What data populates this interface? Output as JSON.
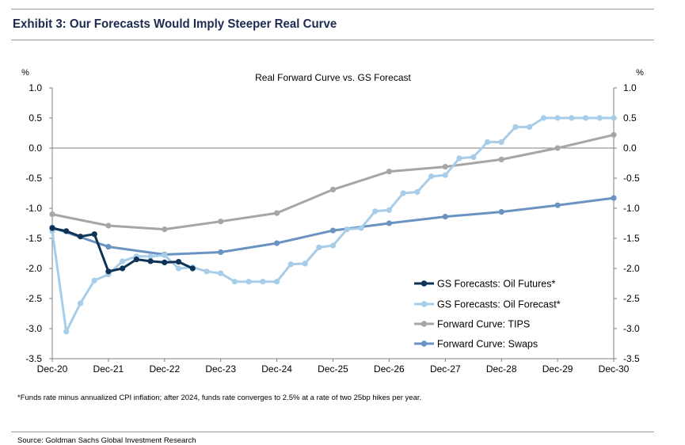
{
  "exhibit_title": "Exhibit 3: Our Forecasts Would Imply Steeper Real Curve",
  "footnote": "*Funds rate minus annualized CPI inflation; after 2024, funds rate converges to 2.5% at a rate of two 25bp hikes per year.",
  "source": "Source: Goldman Sachs Global Investment Research",
  "colors": {
    "title": "#1d2b4f",
    "rule": "#9a9a9a",
    "axis": "#7f7f7f"
  },
  "chart_data": {
    "type": "line",
    "title": "Real Forward Curve vs. GS Forecast",
    "ylabel_left": "%",
    "ylabel_right": "%",
    "ylim": [
      -3.5,
      1.0
    ],
    "yticks": [
      1.0,
      0.5,
      0.0,
      -0.5,
      -1.0,
      -1.5,
      -2.0,
      -2.5,
      -3.0,
      -3.5
    ],
    "ytick_labels": [
      "1.0",
      "0.5",
      "0.0",
      "-0.5",
      "-1.0",
      "-1.5",
      "-2.0",
      "-2.5",
      "-3.0",
      "-3.5"
    ],
    "xlim": [
      2020.917,
      2030.917
    ],
    "xticks": [
      2020.917,
      2021.917,
      2022.917,
      2023.917,
      2024.917,
      2025.917,
      2026.917,
      2027.917,
      2028.917,
      2029.917,
      2030.917
    ],
    "xtick_labels": [
      "Dec-20",
      "Dec-21",
      "Dec-22",
      "Dec-23",
      "Dec-24",
      "Dec-25",
      "Dec-26",
      "Dec-27",
      "Dec-28",
      "Dec-29",
      "Dec-30"
    ],
    "grid": false,
    "zero_line": true,
    "legend_position": "bottom-right",
    "series": [
      {
        "name": "GS Forecasts: Oil Futures*",
        "color": "#0d3357",
        "x": [
          2020.917,
          2021.167,
          2021.417,
          2021.667,
          2021.917,
          2022.167,
          2022.417,
          2022.667,
          2022.917,
          2023.167,
          2023.417
        ],
        "y": [
          -1.33,
          -1.38,
          -1.47,
          -1.43,
          -2.05,
          -2.0,
          -1.85,
          -1.88,
          -1.9,
          -1.89,
          -2.0
        ]
      },
      {
        "name": "GS Forecasts: Oil Forecast*",
        "color": "#a8cde9",
        "x": [
          2020.917,
          2021.167,
          2021.417,
          2021.667,
          2021.917,
          2022.167,
          2022.417,
          2022.667,
          2022.917,
          2023.167,
          2023.417,
          2023.667,
          2023.917,
          2024.167,
          2024.417,
          2024.667,
          2024.917,
          2025.167,
          2025.417,
          2025.667,
          2025.917,
          2026.167,
          2026.417,
          2026.667,
          2026.917,
          2027.167,
          2027.417,
          2027.667,
          2027.917,
          2028.167,
          2028.417,
          2028.667,
          2028.917,
          2029.167,
          2029.417,
          2029.667,
          2029.917,
          2030.167,
          2030.417,
          2030.667,
          2030.917
        ],
        "y": [
          -1.38,
          -3.05,
          -2.58,
          -2.2,
          -2.1,
          -1.88,
          -1.8,
          -1.8,
          -1.78,
          -2.0,
          -1.98,
          -2.05,
          -2.08,
          -2.22,
          -2.22,
          -2.22,
          -2.22,
          -1.93,
          -1.92,
          -1.65,
          -1.62,
          -1.35,
          -1.33,
          -1.05,
          -1.03,
          -0.75,
          -0.73,
          -0.47,
          -0.45,
          -0.17,
          -0.15,
          0.1,
          0.1,
          0.35,
          0.35,
          0.5,
          0.5,
          0.5,
          0.5,
          0.5,
          0.5
        ]
      },
      {
        "name": "Forward Curve: TIPS",
        "color": "#a6a6a6",
        "x": [
          2020.917,
          2021.917,
          2022.917,
          2023.917,
          2024.917,
          2025.917,
          2026.917,
          2027.917,
          2028.917,
          2029.917,
          2030.917
        ],
        "y": [
          -1.1,
          -1.29,
          -1.35,
          -1.22,
          -1.08,
          -0.69,
          -0.39,
          -0.31,
          -0.19,
          0.0,
          0.22
        ]
      },
      {
        "name": "Forward Curve: Swaps",
        "color": "#6b93c2",
        "x": [
          2020.917,
          2021.917,
          2022.917,
          2023.917,
          2024.917,
          2025.917,
          2026.917,
          2027.917,
          2028.917,
          2029.917,
          2030.917
        ],
        "y": [
          -1.32,
          -1.64,
          -1.77,
          -1.73,
          -1.58,
          -1.37,
          -1.25,
          -1.14,
          -1.06,
          -0.95,
          -0.83
        ]
      }
    ]
  }
}
